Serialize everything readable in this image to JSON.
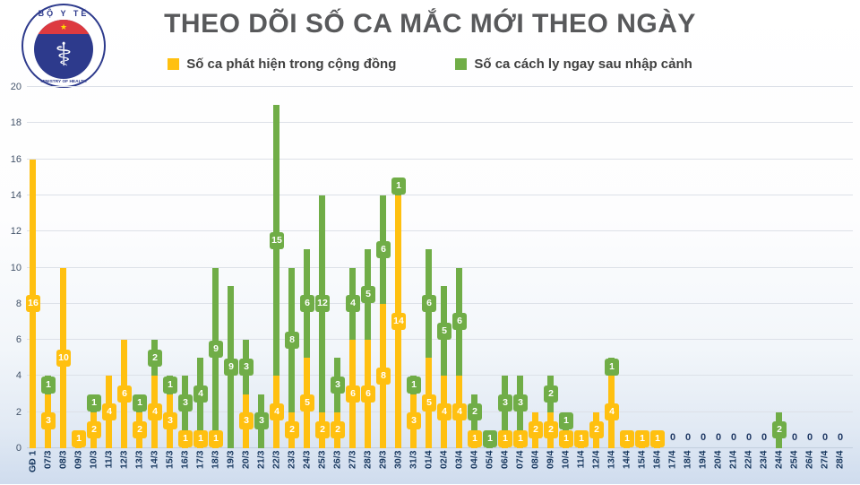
{
  "header": {
    "title": "THEO DÕI SỐ CA MẮC MỚI THEO NGÀY",
    "logo": {
      "top_text": "BỘ Y TẾ",
      "bottom_text": "MINISTRY OF HEALTH",
      "star": "★",
      "symbol": "⚕"
    }
  },
  "legend": [
    {
      "label": "Số ca phát hiện trong cộng đồng",
      "color": "#FFC010"
    },
    {
      "label": "Số ca cách ly ngay sau nhập cảnh",
      "color": "#70AD47"
    }
  ],
  "colors": {
    "community": "#FFC010",
    "imported": "#70AD47",
    "title": "#58595b",
    "axis_label": "#17375e",
    "ytick_label": "#44546a"
  },
  "chart_data": {
    "type": "bar",
    "stacked": true,
    "title": "THEO DÕI SỐ CA MẮC MỚI THEO NGÀY",
    "xlabel": "",
    "ylabel": "",
    "ylim": [
      0,
      20
    ],
    "yticks": [
      0,
      2,
      4,
      6,
      8,
      10,
      12,
      14,
      16,
      18,
      20
    ],
    "grid": true,
    "legend_position": "top",
    "zero_label": "0",
    "categories": [
      "GĐ 1",
      "07/3",
      "08/3",
      "09/3",
      "10/3",
      "11/3",
      "12/3",
      "13/3",
      "14/3",
      "15/3",
      "16/3",
      "17/3",
      "18/3",
      "19/3",
      "20/3",
      "21/3",
      "22/3",
      "23/3",
      "24/3",
      "25/3",
      "26/3",
      "27/3",
      "28/3",
      "29/3",
      "30/3",
      "31/3",
      "01/4",
      "02/4",
      "03/4",
      "04/4",
      "05/4",
      "06/4",
      "07/4",
      "08/4",
      "09/4",
      "10/4",
      "11/4",
      "12/4",
      "13/4",
      "14/4",
      "15/4",
      "16/4",
      "17/4",
      "18/4",
      "19/4",
      "20/4",
      "21/4",
      "22/4",
      "23/4",
      "24/4",
      "25/4",
      "26/4",
      "27/4",
      "28/4"
    ],
    "series": [
      {
        "name": "Số ca phát hiện trong cộng đồng",
        "color": "#FFC010",
        "values": [
          16,
          3,
          10,
          1,
          2,
          4,
          6,
          2,
          4,
          3,
          1,
          1,
          1,
          0,
          3,
          0,
          4,
          2,
          5,
          2,
          2,
          6,
          6,
          8,
          14,
          3,
          5,
          4,
          4,
          1,
          0,
          1,
          1,
          2,
          2,
          1,
          1,
          2,
          4,
          1,
          1,
          1,
          0,
          0,
          0,
          0,
          0,
          0,
          0,
          0,
          0,
          0,
          0,
          0
        ]
      },
      {
        "name": "Số ca cách ly ngay sau nhập cảnh",
        "color": "#70AD47",
        "values": [
          0,
          1,
          0,
          0,
          1,
          0,
          0,
          1,
          2,
          1,
          3,
          4,
          9,
          9,
          3,
          3,
          15,
          8,
          6,
          12,
          3,
          4,
          5,
          6,
          1,
          1,
          6,
          5,
          6,
          2,
          1,
          3,
          3,
          0,
          2,
          1,
          0,
          0,
          1,
          0,
          0,
          0,
          0,
          0,
          0,
          0,
          0,
          0,
          0,
          2,
          0,
          0,
          0,
          0
        ]
      }
    ]
  }
}
